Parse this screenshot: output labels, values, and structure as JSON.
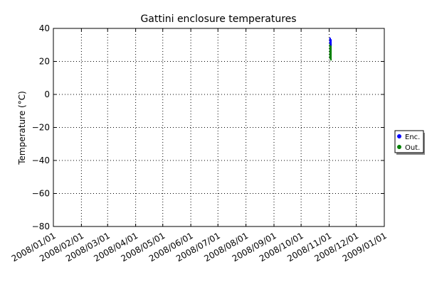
{
  "chart_data": {
    "type": "scatter",
    "title": "Gattini enclosure temperatures",
    "xlabel": "",
    "ylabel": "Temperature (°C)",
    "x_range": [
      "2008/01/01",
      "2009/01/01"
    ],
    "ylim": [
      -80,
      40
    ],
    "x_ticks": [
      "2008/01/01",
      "2008/02/01",
      "2008/03/01",
      "2008/04/01",
      "2008/05/01",
      "2008/06/01",
      "2008/07/01",
      "2008/08/01",
      "2008/09/01",
      "2008/10/01",
      "2008/11/01",
      "2008/12/01",
      "2009/01/01"
    ],
    "y_ticks": [
      40,
      20,
      0,
      -20,
      -40,
      -60,
      -80
    ],
    "grid": true,
    "legend_position": "right",
    "series": [
      {
        "name": "Enc.",
        "color": "#0000ff",
        "x": [
          "2008/11/02",
          "2008/11/02",
          "2008/11/03",
          "2008/11/03"
        ],
        "y": [
          34,
          31,
          33,
          30
        ]
      },
      {
        "name": "Out.",
        "color": "#008000",
        "x": [
          "2008/11/02",
          "2008/11/02",
          "2008/11/03",
          "2008/11/03"
        ],
        "y": [
          31,
          22,
          30,
          21
        ]
      }
    ]
  }
}
